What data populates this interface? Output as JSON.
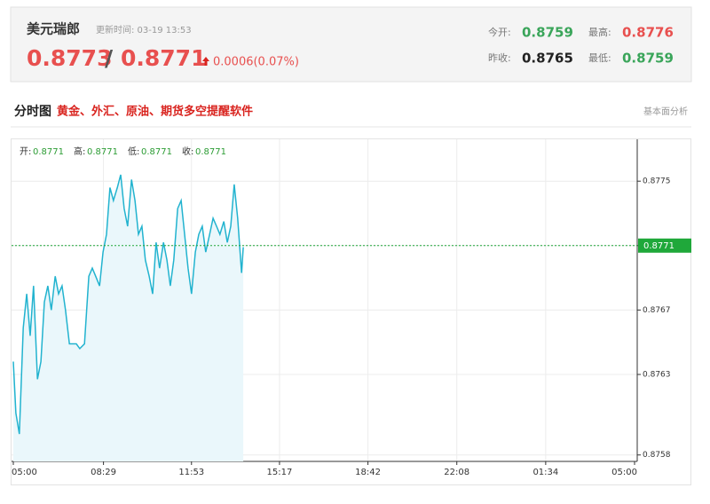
{
  "header": {
    "name": "美元瑞郎",
    "update_time": "更新时间: 03-19 13:53",
    "bid": "0.8773",
    "separator": "/",
    "ask": "0.8771",
    "change": "0.0006(0.07%)",
    "stats": [
      {
        "label": "今开:",
        "value": "0.8759",
        "color": "#3aa55a"
      },
      {
        "label": "最高:",
        "value": "0.8776",
        "color": "#e8504f"
      },
      {
        "label": "昨收:",
        "value": "0.8765",
        "color": "#222222"
      },
      {
        "label": "最低:",
        "value": "0.8759",
        "color": "#3aa55a"
      }
    ]
  },
  "section": {
    "title": "分时图",
    "link": "黄金、外汇、原油、期货多空提醒软件",
    "right_link": "基本面分析"
  },
  "info_row": [
    {
      "label": "开:",
      "value": "0.8771"
    },
    {
      "label": "高:",
      "value": "0.8771"
    },
    {
      "label": "低:",
      "value": "0.8771"
    },
    {
      "label": "收:",
      "value": "0.8771"
    }
  ],
  "chart_data": {
    "type": "area-line",
    "color": "#22b3cf",
    "fill": "#eaf7fb",
    "x": [
      0,
      6,
      14,
      23,
      31,
      39,
      47,
      56,
      64,
      72,
      80,
      88,
      97,
      105,
      113,
      121,
      130,
      138,
      146,
      154,
      165,
      175,
      183,
      191,
      200,
      208,
      216,
      224,
      232,
      241,
      249,
      257,
      265,
      274,
      282,
      290,
      298,
      306,
      315,
      323,
      331,
      339,
      348,
      356,
      364,
      372,
      381,
      389,
      397,
      405,
      413,
      422,
      430,
      438,
      446,
      455,
      463,
      471,
      479,
      488,
      496,
      504,
      512,
      520,
      529,
      533
    ],
    "values": [
      0.87638,
      0.87606,
      0.87593,
      0.87659,
      0.8768,
      0.87654,
      0.87685,
      0.87627,
      0.87638,
      0.87675,
      0.87685,
      0.8767,
      0.87691,
      0.8768,
      0.87685,
      0.8767,
      0.87649,
      0.87649,
      0.87649,
      0.87646,
      0.87649,
      0.87691,
      0.87696,
      0.87691,
      0.87685,
      0.87706,
      0.87717,
      0.87746,
      0.87738,
      0.87746,
      0.87754,
      0.87733,
      0.87722,
      0.87751,
      0.87738,
      0.87717,
      0.87722,
      0.87701,
      0.87691,
      0.8768,
      0.87712,
      0.87696,
      0.87712,
      0.87701,
      0.87685,
      0.87701,
      0.87733,
      0.87738,
      0.87717,
      0.87696,
      0.8768,
      0.87706,
      0.87717,
      0.87722,
      0.87706,
      0.87717,
      0.87727,
      0.87722,
      0.87717,
      0.87725,
      0.87712,
      0.87722,
      0.87748,
      0.87727,
      0.87693,
      0.87709
    ],
    "xlim": [
      0,
      1440
    ],
    "xticks": [
      {
        "value": 0,
        "label": "05:00"
      },
      {
        "value": 209,
        "label": "08:29"
      },
      {
        "value": 413,
        "label": "11:53"
      },
      {
        "value": 617,
        "label": "15:17"
      },
      {
        "value": 822,
        "label": "18:42"
      },
      {
        "value": 1028,
        "label": "22:08"
      },
      {
        "value": 1234,
        "label": "01:34"
      },
      {
        "value": 1440,
        "label": "05:00"
      }
    ],
    "ylim": [
      0.87576,
      0.87776
    ],
    "yticks": [
      0.8758,
      0.8763,
      0.8767,
      0.8771,
      0.8775
    ],
    "current_price": 0.8771,
    "current_color": "#1fa83a",
    "grid": true
  }
}
